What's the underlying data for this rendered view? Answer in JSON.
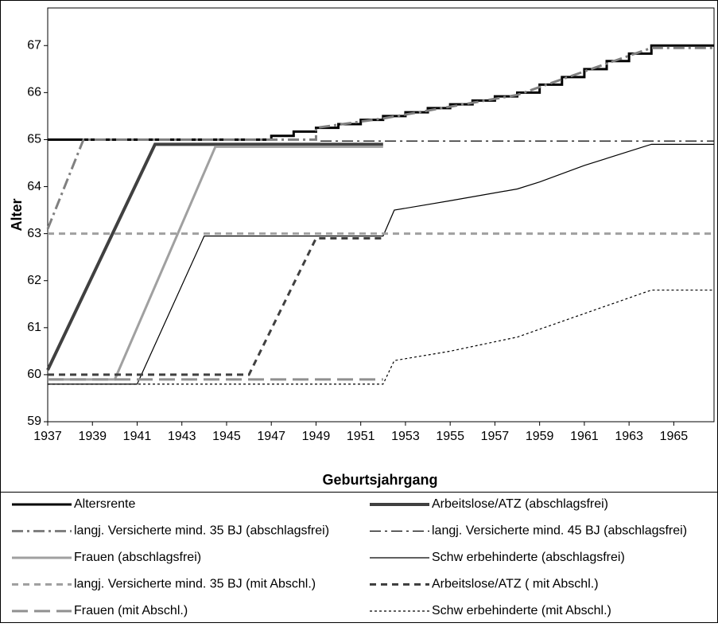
{
  "chart_data": {
    "type": "line",
    "x_label": "Geburtsjahrgang",
    "y_label": "Alter",
    "xlim": [
      1937,
      1966.8
    ],
    "ylim": [
      59,
      67.8
    ],
    "xticks": [
      1937,
      1939,
      1941,
      1943,
      1945,
      1947,
      1949,
      1951,
      1953,
      1955,
      1957,
      1959,
      1961,
      1963,
      1965
    ],
    "yticks": [
      59,
      60,
      61,
      62,
      63,
      64,
      65,
      66,
      67
    ],
    "legend": "bottom",
    "series": [
      {
        "name": "Altersrente",
        "color": "#000000",
        "style": "solid",
        "width": 3,
        "x": [
          1937,
          1947,
          1947,
          1948,
          1948,
          1949,
          1949,
          1950,
          1950,
          1951,
          1951,
          1952,
          1952,
          1953,
          1953,
          1954,
          1954,
          1955,
          1955,
          1956,
          1956,
          1957,
          1957,
          1958,
          1958,
          1959,
          1959,
          1960,
          1960,
          1961,
          1961,
          1962,
          1962,
          1963,
          1963,
          1964,
          1964,
          1966.8
        ],
        "values": [
          65,
          65,
          65.08,
          65.08,
          65.17,
          65.17,
          65.25,
          65.25,
          65.33,
          65.33,
          65.42,
          65.42,
          65.5,
          65.5,
          65.58,
          65.58,
          65.67,
          65.67,
          65.75,
          65.75,
          65.83,
          65.83,
          65.92,
          65.92,
          66,
          66,
          66.17,
          66.17,
          66.33,
          66.33,
          66.5,
          66.5,
          66.67,
          66.67,
          66.83,
          66.83,
          67,
          67
        ]
      },
      {
        "name": "Arbeitslose/ATZ (abschlagsfrei)",
        "color": "#404040",
        "style": "solid",
        "width": 4,
        "x": [
          1937,
          1941.8,
          1952
        ],
        "values": [
          60.1,
          64.9,
          64.9
        ]
      },
      {
        "name": "langj. Versicherte mind. 35 BJ (abschlagsfrei)",
        "color": "#808080",
        "style": "dashdot",
        "width": 3,
        "x": [
          1937,
          1938.6,
          1949,
          1949,
          1952,
          1955,
          1958,
          1961,
          1964,
          1966.8
        ],
        "values": [
          63.1,
          65,
          65,
          65.25,
          65.45,
          65.7,
          65.95,
          66.45,
          66.95,
          66.95
        ]
      },
      {
        "name": "langj. Versicherte mind. 45 BJ (abschlagsfrei)",
        "color": "#000000",
        "style": "dashdot",
        "width": 1.2,
        "x": [
          1949.2,
          1966.8
        ],
        "values": [
          64.97,
          64.97
        ]
      },
      {
        "name": "Frauen (abschlagsfrei)",
        "color": "#a0a0a0",
        "style": "solid",
        "width": 3,
        "x": [
          1937,
          1940,
          1944.5,
          1952
        ],
        "values": [
          59.9,
          59.9,
          64.85,
          64.85
        ]
      },
      {
        "name": "Schw erbehinderte (abschlagsfrei)",
        "color": "#000000",
        "style": "solid",
        "width": 1.2,
        "x": [
          1937,
          1941,
          1944,
          1952,
          1952.5,
          1955,
          1958,
          1959,
          1961,
          1964,
          1966.8
        ],
        "values": [
          59.8,
          59.8,
          62.95,
          62.95,
          63.5,
          63.7,
          63.95,
          64.1,
          64.45,
          64.9,
          64.9
        ]
      },
      {
        "name": "langj. Versicherte mind. 35 BJ (mit Abschl.)",
        "color": "#a0a0a0",
        "style": "dash",
        "width": 3,
        "x": [
          1937,
          1966.8
        ],
        "values": [
          63,
          63
        ]
      },
      {
        "name": "Arbeitslose/ATZ ( mit Abschl.)",
        "color": "#404040",
        "style": "dash",
        "width": 3,
        "x": [
          1937,
          1946,
          1949,
          1952
        ],
        "values": [
          60,
          60,
          62.9,
          62.9
        ]
      },
      {
        "name": "Frauen (mit Abschl.)",
        "color": "#909090",
        "style": "longdash",
        "width": 3,
        "x": [
          1937,
          1952
        ],
        "values": [
          59.9,
          59.9
        ]
      },
      {
        "name": "Schw erbehinderte  (mit Abschl.)",
        "color": "#000000",
        "style": "dot",
        "width": 1.2,
        "x": [
          1937,
          1952,
          1952.5,
          1955,
          1958,
          1961,
          1964,
          1966.8
        ],
        "values": [
          59.8,
          59.8,
          60.3,
          60.5,
          60.8,
          61.3,
          61.8,
          61.8
        ]
      }
    ]
  }
}
